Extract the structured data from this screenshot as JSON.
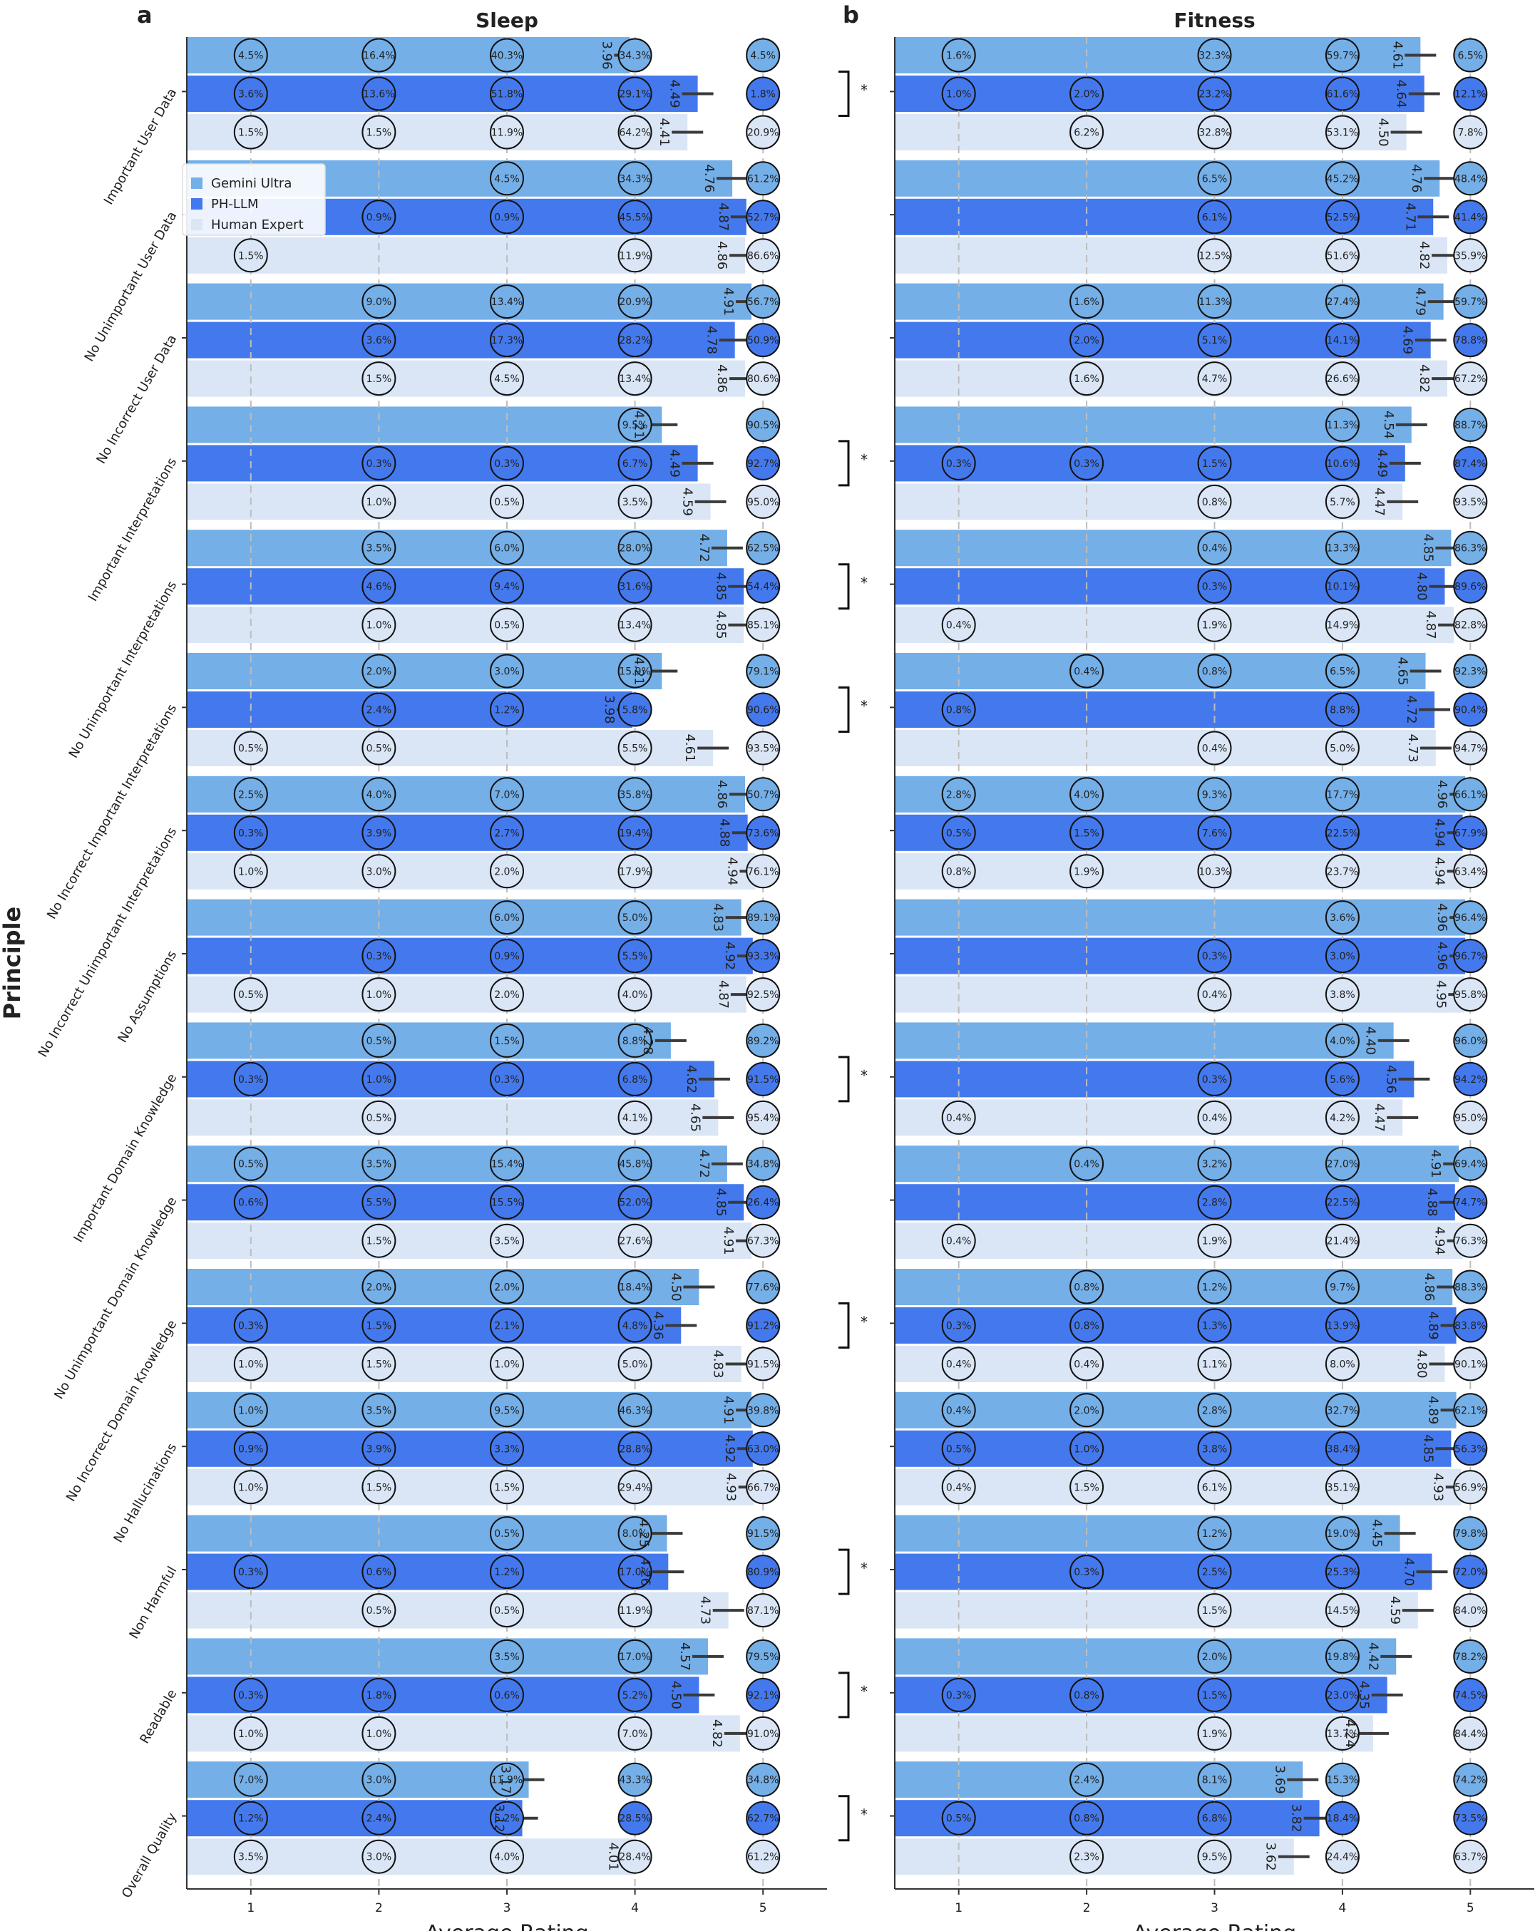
{
  "figure": {
    "y_title": "Principle",
    "legend": {
      "entries": [
        {
          "name": "Gemini Ultra",
          "color": "#74afe8"
        },
        {
          "name": "PH-LLM",
          "color": "#4479ee"
        },
        {
          "name": "Human Expert",
          "color": "#dae6f6"
        }
      ],
      "placement": "upper-left of panel a"
    }
  },
  "chart_data": [
    {
      "panel": "a",
      "type": "bar",
      "orientation": "horizontal",
      "title": "Sleep",
      "xlabel": "Average Rating",
      "xlim": [
        0.5,
        5.5
      ],
      "xticks": [
        1,
        2,
        3,
        4,
        5
      ],
      "grid": "vertical dashed",
      "categories": [
        "Important User Data",
        "No Unimportant User Data",
        "No Incorrect User Data",
        "Important Interpretations",
        "No Unimportant Interpretations",
        "No Incorrect Important Interpretations",
        "No Incorrect Unimportant Interpretations",
        "No Assumptions",
        "Important Domain Knowledge",
        "No Unimportant Domain Knowledge",
        "No Incorrect Domain Knowledge",
        "No Hallucinations",
        "Non Harmful",
        "Readable",
        "Overall Quality"
      ],
      "significant": [
        true,
        false,
        false,
        true,
        true,
        true,
        false,
        false,
        true,
        false,
        true,
        false,
        true,
        true,
        true
      ],
      "series": [
        {
          "name": "Gemini Ultra",
          "means": [
            "3.96",
            "4.76",
            "4.91",
            "4.21",
            "4.72",
            "4.21",
            "4.86",
            "4.83",
            "4.28",
            "4.72",
            "4.50",
            "4.91",
            "4.25",
            "4.57",
            "3.17"
          ],
          "pcts": [
            [
              "4.5%",
              "16.4%",
              "40.3%",
              "34.3%",
              "4.5%"
            ],
            [
              "",
              "",
              "4.5%",
              "34.3%",
              "61.2%"
            ],
            [
              "",
              "9.0%",
              "13.4%",
              "20.9%",
              "56.7%"
            ],
            [
              "",
              "",
              "",
              "9.5%",
              "90.5%"
            ],
            [
              "",
              "3.5%",
              "6.0%",
              "28.0%",
              "62.5%"
            ],
            [
              "",
              "2.0%",
              "3.0%",
              "15.9%",
              "79.1%"
            ],
            [
              "2.5%",
              "4.0%",
              "7.0%",
              "35.8%",
              "50.7%"
            ],
            [
              "",
              "",
              "6.0%",
              "5.0%",
              "89.1%"
            ],
            [
              "",
              "0.5%",
              "1.5%",
              "8.8%",
              "89.2%"
            ],
            [
              "0.5%",
              "3.5%",
              "15.4%",
              "45.8%",
              "34.8%"
            ],
            [
              "",
              "2.0%",
              "2.0%",
              "18.4%",
              "77.6%"
            ],
            [
              "1.0%",
              "3.5%",
              "9.5%",
              "46.3%",
              "39.8%"
            ],
            [
              "",
              "",
              "0.5%",
              "8.0%",
              "91.5%"
            ],
            [
              "",
              "",
              "3.5%",
              "17.0%",
              "79.5%"
            ],
            [
              "7.0%",
              "3.0%",
              "11.9%",
              "43.3%",
              "34.8%"
            ]
          ]
        },
        {
          "name": "PH-LLM",
          "means": [
            "4.49",
            "4.87",
            "4.78",
            "4.49",
            "4.85",
            "3.98",
            "4.88",
            "4.92",
            "4.62",
            "4.85",
            "4.36",
            "4.92",
            "4.26",
            "4.50",
            "3.12"
          ],
          "pcts": [
            [
              "3.6%",
              "13.6%",
              "51.8%",
              "29.1%",
              "1.8%"
            ],
            [
              "",
              "0.9%",
              "0.9%",
              "45.5%",
              "52.7%"
            ],
            [
              "",
              "3.6%",
              "17.3%",
              "28.2%",
              "50.9%"
            ],
            [
              "",
              "0.3%",
              "0.3%",
              "6.7%",
              "92.7%"
            ],
            [
              "",
              "4.6%",
              "9.4%",
              "31.6%",
              "54.4%"
            ],
            [
              "",
              "2.4%",
              "1.2%",
              "5.8%",
              "90.6%"
            ],
            [
              "0.3%",
              "3.9%",
              "2.7%",
              "19.4%",
              "73.6%"
            ],
            [
              "",
              "0.3%",
              "0.9%",
              "5.5%",
              "93.3%"
            ],
            [
              "0.3%",
              "1.0%",
              "0.3%",
              "6.8%",
              "91.5%"
            ],
            [
              "0.6%",
              "5.5%",
              "15.5%",
              "52.0%",
              "26.4%"
            ],
            [
              "0.3%",
              "1.5%",
              "2.1%",
              "4.8%",
              "91.2%"
            ],
            [
              "0.9%",
              "3.9%",
              "3.3%",
              "28.8%",
              "63.0%"
            ],
            [
              "0.3%",
              "0.6%",
              "1.2%",
              "17.0%",
              "80.9%"
            ],
            [
              "0.3%",
              "1.8%",
              "0.6%",
              "5.2%",
              "92.1%"
            ],
            [
              "1.2%",
              "2.4%",
              "5.2%",
              "28.5%",
              "62.7%"
            ]
          ]
        },
        {
          "name": "Human Expert",
          "means": [
            "4.41",
            "4.86",
            "4.86",
            "4.59",
            "4.85",
            "4.61",
            "4.94",
            "4.87",
            "4.65",
            "4.91",
            "4.83",
            "4.93",
            "4.73",
            "4.82",
            "4.01"
          ],
          "pcts": [
            [
              "1.5%",
              "1.5%",
              "11.9%",
              "64.2%",
              "20.9%"
            ],
            [
              "1.5%",
              "",
              "",
              "11.9%",
              "86.6%"
            ],
            [
              "",
              "1.5%",
              "4.5%",
              "13.4%",
              "80.6%"
            ],
            [
              "",
              "1.0%",
              "0.5%",
              "3.5%",
              "95.0%"
            ],
            [
              "",
              "1.0%",
              "0.5%",
              "13.4%",
              "85.1%"
            ],
            [
              "0.5%",
              "0.5%",
              "",
              "5.5%",
              "93.5%"
            ],
            [
              "1.0%",
              "3.0%",
              "2.0%",
              "17.9%",
              "76.1%"
            ],
            [
              "0.5%",
              "1.0%",
              "2.0%",
              "4.0%",
              "92.5%"
            ],
            [
              "",
              "0.5%",
              "",
              "4.1%",
              "95.4%"
            ],
            [
              "",
              "1.5%",
              "3.5%",
              "27.6%",
              "67.3%"
            ],
            [
              "1.0%",
              "1.5%",
              "1.0%",
              "5.0%",
              "91.5%"
            ],
            [
              "1.0%",
              "1.5%",
              "1.5%",
              "29.4%",
              "66.7%"
            ],
            [
              "",
              "0.5%",
              "0.5%",
              "11.9%",
              "87.1%"
            ],
            [
              "1.0%",
              "1.0%",
              "",
              "7.0%",
              "91.0%"
            ],
            [
              "3.5%",
              "3.0%",
              "4.0%",
              "28.4%",
              "61.2%"
            ]
          ]
        }
      ]
    },
    {
      "panel": "b",
      "type": "bar",
      "orientation": "horizontal",
      "title": "Fitness",
      "xlabel": "Average Rating",
      "xlim": [
        0.5,
        5.5
      ],
      "xticks": [
        1,
        2,
        3,
        4,
        5
      ],
      "grid": "vertical dashed",
      "categories": [
        "Important User Data",
        "No Unimportant User Data",
        "No Incorrect User Data",
        "Important Interpretations",
        "No Unimportant Interpretations",
        "No Incorrect Important Interpretations",
        "No Incorrect Unimportant Interpretations",
        "No Assumptions",
        "Important Domain Knowledge",
        "No Unimportant Domain Knowledge",
        "No Incorrect Domain Knowledge",
        "No Hallucinations",
        "Non Harmful",
        "Readable",
        "Overall Quality"
      ],
      "significant": [
        false,
        false,
        false,
        false,
        false,
        false,
        false,
        false,
        false,
        false,
        false,
        false,
        false,
        false,
        false
      ],
      "series": [
        {
          "name": "Gemini Ultra",
          "means": [
            "4.61",
            "4.76",
            "4.79",
            "4.54",
            "4.85",
            "4.65",
            "4.96",
            "4.96",
            "4.40",
            "4.91",
            "4.86",
            "4.89",
            "4.45",
            "4.42",
            "3.69"
          ],
          "pcts": [
            [
              "1.6%",
              "",
              "32.3%",
              "59.7%",
              "6.5%"
            ],
            [
              "",
              "",
              "6.5%",
              "45.2%",
              "48.4%"
            ],
            [
              "",
              "1.6%",
              "11.3%",
              "27.4%",
              "59.7%"
            ],
            [
              "",
              "",
              "",
              "11.3%",
              "88.7%"
            ],
            [
              "",
              "",
              "0.4%",
              "13.3%",
              "86.3%"
            ],
            [
              "",
              "0.4%",
              "0.8%",
              "6.5%",
              "92.3%"
            ],
            [
              "2.8%",
              "4.0%",
              "9.3%",
              "17.7%",
              "66.1%"
            ],
            [
              "",
              "",
              "",
              "3.6%",
              "96.4%"
            ],
            [
              "",
              "",
              "",
              "4.0%",
              "96.0%"
            ],
            [
              "",
              "0.4%",
              "3.2%",
              "27.0%",
              "69.4%"
            ],
            [
              "",
              "0.8%",
              "1.2%",
              "9.7%",
              "88.3%"
            ],
            [
              "0.4%",
              "2.0%",
              "2.8%",
              "32.7%",
              "62.1%"
            ],
            [
              "",
              "",
              "1.2%",
              "19.0%",
              "79.8%"
            ],
            [
              "",
              "",
              "2.0%",
              "19.8%",
              "78.2%"
            ],
            [
              "",
              "2.4%",
              "8.1%",
              "15.3%",
              "74.2%"
            ]
          ]
        },
        {
          "name": "PH-LLM",
          "means": [
            "4.64",
            "4.71",
            "4.69",
            "4.49",
            "4.80",
            "4.72",
            "4.94",
            "4.96",
            "4.56",
            "4.88",
            "4.89",
            "4.85",
            "4.70",
            "4.35",
            "3.82"
          ],
          "pcts": [
            [
              "1.0%",
              "2.0%",
              "23.2%",
              "61.6%",
              "12.1%"
            ],
            [
              "",
              "",
              "6.1%",
              "52.5%",
              "41.4%"
            ],
            [
              "",
              "2.0%",
              "5.1%",
              "14.1%",
              "78.8%"
            ],
            [
              "0.3%",
              "0.3%",
              "1.5%",
              "10.6%",
              "87.4%"
            ],
            [
              "",
              "",
              "0.3%",
              "10.1%",
              "89.6%"
            ],
            [
              "0.8%",
              "",
              "",
              "8.8%",
              "90.4%"
            ],
            [
              "0.5%",
              "1.5%",
              "7.6%",
              "22.5%",
              "67.9%"
            ],
            [
              "",
              "",
              "0.3%",
              "3.0%",
              "96.7%"
            ],
            [
              "",
              "",
              "0.3%",
              "5.6%",
              "94.2%"
            ],
            [
              "",
              "",
              "2.8%",
              "22.5%",
              "74.7%"
            ],
            [
              "0.3%",
              "0.8%",
              "1.3%",
              "13.9%",
              "83.8%"
            ],
            [
              "0.5%",
              "1.0%",
              "3.8%",
              "38.4%",
              "56.3%"
            ],
            [
              "",
              "0.3%",
              "2.5%",
              "25.3%",
              "72.0%"
            ],
            [
              "0.3%",
              "0.8%",
              "1.5%",
              "23.0%",
              "74.5%"
            ],
            [
              "0.5%",
              "0.8%",
              "6.8%",
              "18.4%",
              "73.5%"
            ]
          ]
        },
        {
          "name": "Human Expert",
          "means": [
            "4.50",
            "4.82",
            "4.82",
            "4.47",
            "4.87",
            "4.73",
            "4.94",
            "4.95",
            "4.47",
            "4.94",
            "4.80",
            "4.93",
            "4.59",
            "4.24",
            "3.62"
          ],
          "pcts": [
            [
              "",
              "6.2%",
              "32.8%",
              "53.1%",
              "7.8%"
            ],
            [
              "",
              "",
              "12.5%",
              "51.6%",
              "35.9%"
            ],
            [
              "",
              "1.6%",
              "4.7%",
              "26.6%",
              "67.2%"
            ],
            [
              "",
              "",
              "0.8%",
              "5.7%",
              "93.5%"
            ],
            [
              "0.4%",
              "",
              "1.9%",
              "14.9%",
              "82.8%"
            ],
            [
              "",
              "",
              "0.4%",
              "5.0%",
              "94.7%"
            ],
            [
              "0.8%",
              "1.9%",
              "10.3%",
              "23.7%",
              "63.4%"
            ],
            [
              "",
              "",
              "0.4%",
              "3.8%",
              "95.8%"
            ],
            [
              "0.4%",
              "",
              "0.4%",
              "4.2%",
              "95.0%"
            ],
            [
              "0.4%",
              "",
              "1.9%",
              "21.4%",
              "76.3%"
            ],
            [
              "0.4%",
              "0.4%",
              "1.1%",
              "8.0%",
              "90.1%"
            ],
            [
              "0.4%",
              "1.5%",
              "6.1%",
              "35.1%",
              "56.9%"
            ],
            [
              "",
              "",
              "1.5%",
              "14.5%",
              "84.0%"
            ],
            [
              "",
              "",
              "1.9%",
              "13.7%",
              "84.4%"
            ],
            [
              "",
              "2.3%",
              "9.5%",
              "24.4%",
              "63.7%"
            ]
          ]
        }
      ]
    }
  ]
}
